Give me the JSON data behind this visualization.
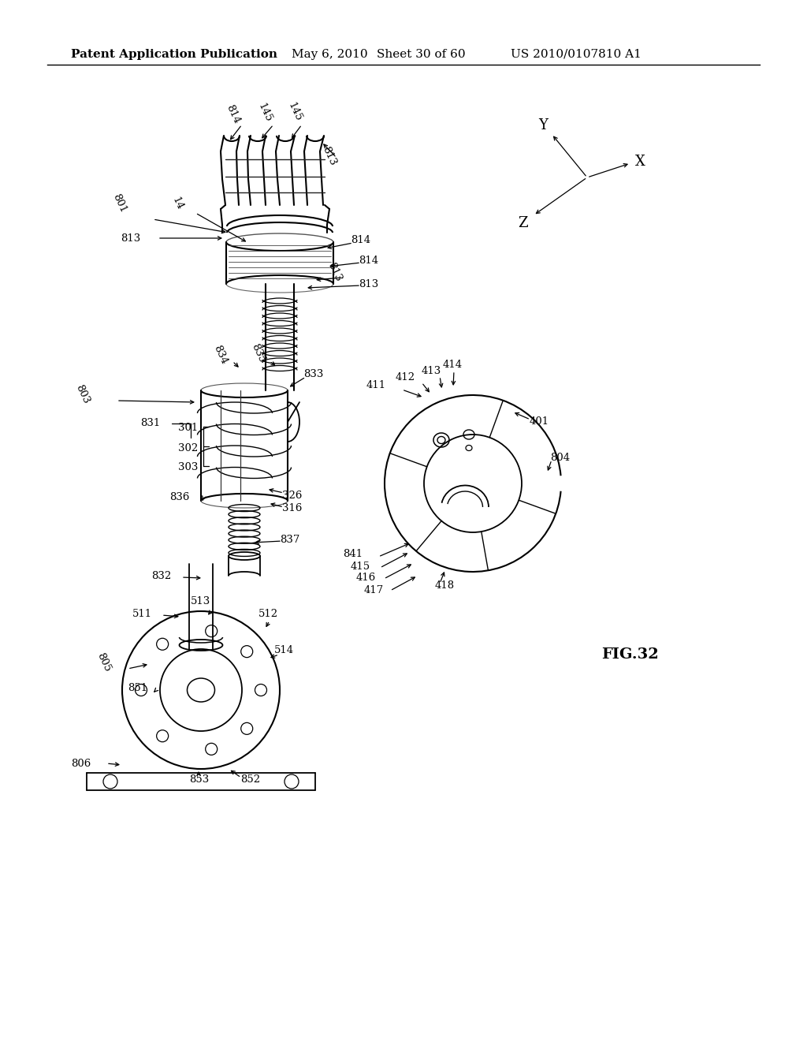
{
  "title": "Patent Application Publication",
  "date": "May 6, 2010",
  "sheet": "Sheet 30 of 60",
  "patent_num": "US 2010/0107810 A1",
  "fig_label": "FIG.32",
  "background_color": "#ffffff",
  "text_color": "#000000",
  "header_fontsize": 11,
  "label_fontsize": 9.5,
  "fig_label_fontsize": 14,
  "coord_labels": [
    "Y",
    "X",
    "Z"
  ],
  "top_labels": [
    "814",
    "145",
    "145",
    "813",
    "813",
    "801",
    "14",
    "813",
    "814",
    "814",
    "813"
  ],
  "mid_labels": [
    "803",
    "834",
    "835",
    "833",
    "831",
    "301",
    "302",
    "303",
    "836",
    "326",
    "316",
    "837",
    "832"
  ],
  "bot_labels": [
    "511",
    "513",
    "512",
    "514",
    "805",
    "851",
    "853",
    "852",
    "806"
  ],
  "ring_labels": [
    "411",
    "412",
    "413",
    "414",
    "401",
    "804",
    "841",
    "415",
    "416",
    "417",
    "418"
  ]
}
